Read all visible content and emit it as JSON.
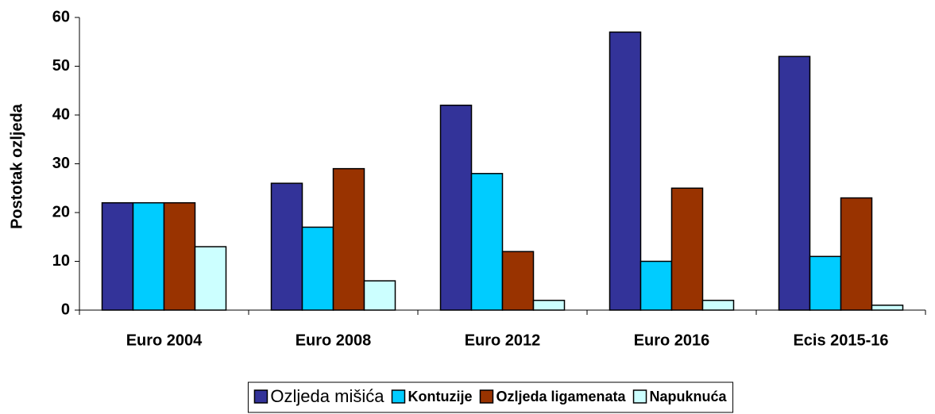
{
  "chart_data": {
    "type": "bar",
    "ylabel": "Postotak ozljeda",
    "categories": [
      "Euro 2004",
      "Euro 2008",
      "Euro 2012",
      "Euro 2016",
      "Ecis 2015-16"
    ],
    "series": [
      {
        "name": "Ozljeda mišića",
        "color": "#333399",
        "values": [
          22,
          26,
          42,
          57,
          52
        ]
      },
      {
        "name": "Kontuzije",
        "color": "#00ccff",
        "values": [
          22,
          17,
          28,
          10,
          11
        ]
      },
      {
        "name": "Ozljeda ligamenata",
        "color": "#993300",
        "values": [
          22,
          29,
          12,
          25,
          23
        ]
      },
      {
        "name": "Napuknuća",
        "color": "#ccffff",
        "values": [
          13,
          6,
          2,
          2,
          1
        ]
      }
    ],
    "ylim": [
      0,
      60
    ],
    "yticks": [
      0,
      10,
      20,
      30,
      40,
      50,
      60
    ],
    "grid": false,
    "legend": "bottom"
  }
}
